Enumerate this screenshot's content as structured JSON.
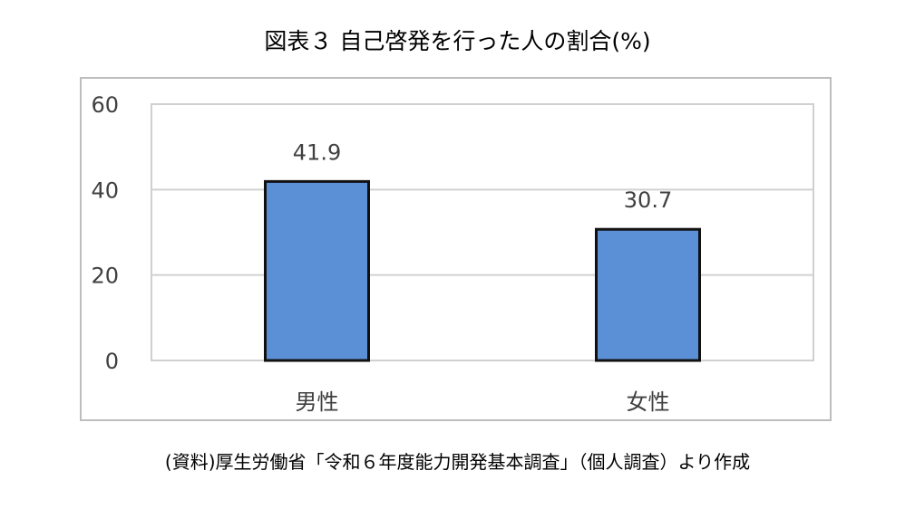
{
  "title": "図表３ 自己啓発を行った人の割合(%)",
  "source": "(資料)厚生労働省「令和６年度能力開発基本調査」（個人調査）より作成",
  "colors": {
    "bar_fill": "#5b8fd6",
    "bar_stroke": "#111111",
    "grid": "#d0d0d0",
    "frame": "#bdbdbd",
    "text": "#404040"
  },
  "chart_data": {
    "type": "bar",
    "categories": [
      "男性",
      "女性"
    ],
    "values": [
      41.9,
      30.7
    ],
    "data_labels": [
      "41.9",
      "30.7"
    ],
    "y_ticks": [
      0,
      20,
      40,
      60
    ],
    "ylim": [
      0,
      60
    ],
    "grid": true
  }
}
